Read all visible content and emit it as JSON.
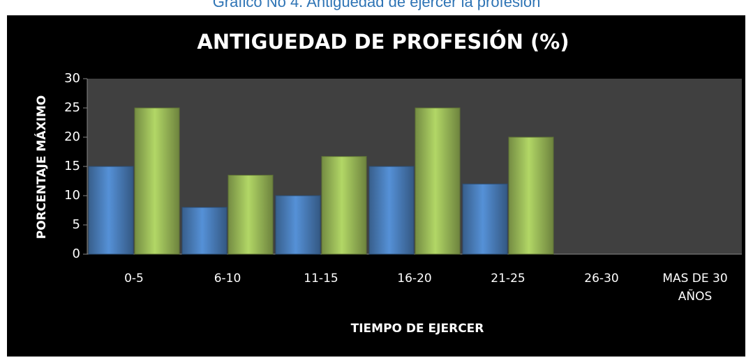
{
  "caption": "Gráfico No 4. Antigüedad de ejercer la profesión",
  "chart_data": {
    "type": "bar",
    "title": "ANTIGUEDAD DE PROFESIÓN  (%)",
    "x_label": "TIEMPO DE EJERCER",
    "y_label": "PORCENTAJE MÁXIMO",
    "categories": [
      "0-5",
      "6-10",
      "11-15",
      "16-20",
      "21-25",
      "26-30",
      "MAS DE 30 AÑOS"
    ],
    "series": [
      {
        "color": "#4a7ebb",
        "values": [
          15,
          8,
          10,
          15,
          12,
          null,
          null
        ]
      },
      {
        "color": "#9bbb59",
        "values": [
          25,
          13.5,
          16.7,
          25,
          20,
          null,
          null
        ]
      }
    ],
    "ylim": [
      0,
      30
    ],
    "yticks": [
      0,
      5,
      10,
      15,
      20,
      25,
      30
    ],
    "grid": false
  }
}
